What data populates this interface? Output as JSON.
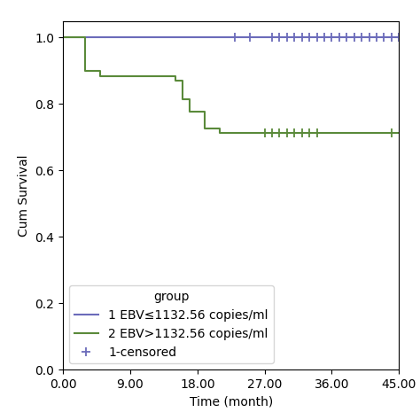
{
  "chart_data": {
    "type": "line",
    "xlabel": "Time (month)",
    "ylabel": "Cum Survival",
    "xlim": [
      0,
      45
    ],
    "ylim": [
      0.0,
      1.05
    ],
    "xticks": [
      {
        "value": 0.0,
        "label": "0.00"
      },
      {
        "value": 9.0,
        "label": "9.00"
      },
      {
        "value": 18.0,
        "label": "18.00"
      },
      {
        "value": 27.0,
        "label": "27.00"
      },
      {
        "value": 36.0,
        "label": "36.00"
      },
      {
        "value": 45.0,
        "label": "45.00"
      }
    ],
    "yticks": [
      0.0,
      0.2,
      0.4,
      0.6,
      0.8,
      1.0
    ],
    "legend": "lower left",
    "legend_title": "group",
    "series": [
      {
        "name": "1 EBV≤1132.56 copies/ml",
        "type": "step",
        "color": "#6b6bba",
        "x": [
          0,
          45
        ],
        "values": [
          1.0,
          1.0
        ]
      },
      {
        "name": "2 EBV>1132.56 copies/ml",
        "type": "step",
        "color": "#5a8a3a",
        "x": [
          0,
          3,
          5,
          7,
          15,
          16,
          17,
          19,
          21,
          45
        ],
        "values": [
          1.0,
          0.9,
          0.885,
          0.885,
          0.87,
          0.815,
          0.776,
          0.727,
          0.714,
          0.714
        ]
      },
      {
        "name": "1-censored",
        "type": "scatter",
        "marker": "plus",
        "color": "#6b6bba",
        "x": [
          23,
          25,
          28,
          29,
          30,
          31,
          32,
          33,
          34,
          35,
          36,
          37,
          38,
          39,
          40,
          41,
          42,
          43,
          44,
          45
        ],
        "values": [
          1.0,
          1.0,
          1.0,
          1.0,
          1.0,
          1.0,
          1.0,
          1.0,
          1.0,
          1.0,
          1.0,
          1.0,
          1.0,
          1.0,
          1.0,
          1.0,
          1.0,
          1.0,
          1.0,
          1.0
        ]
      },
      {
        "type": "scatter",
        "marker": "plus",
        "color": "#5a8a3a",
        "x": [
          27,
          28,
          29,
          30,
          31,
          32,
          33,
          34,
          44
        ],
        "values": [
          0.714,
          0.714,
          0.714,
          0.714,
          0.714,
          0.714,
          0.714,
          0.714,
          0.714
        ]
      }
    ]
  }
}
